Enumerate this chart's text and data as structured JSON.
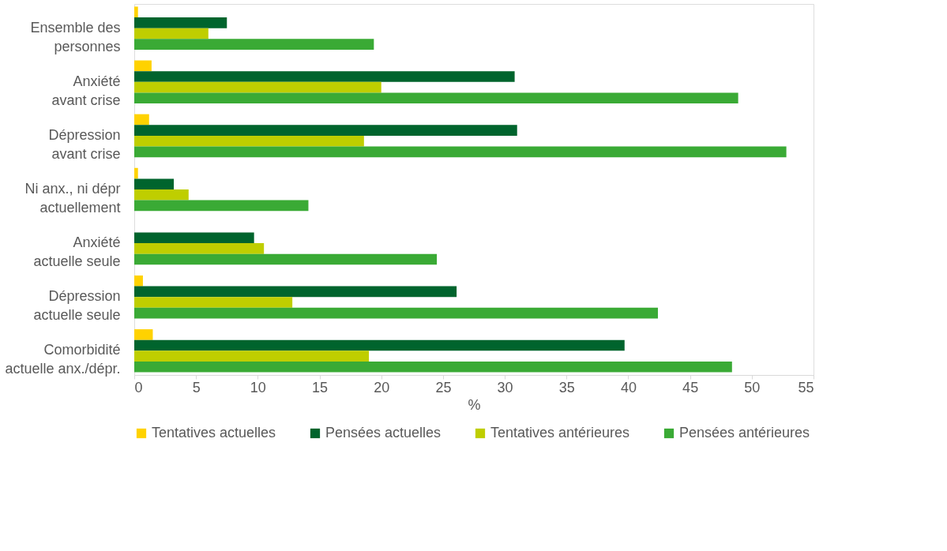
{
  "chart_data": {
    "type": "bar",
    "orientation": "horizontal",
    "xlabel": "%",
    "categories": [
      "Ensemble des\npersonnes",
      "Anxiété\navant crise",
      "Dépression\navant crise",
      "Ni anx., ni dépr\nactuellement",
      "Anxiété\nactuelle seule",
      "Dépression\nactuelle seule",
      "Comorbidité\nactuelle anx./dépr."
    ],
    "series": [
      {
        "name": "Tentatives actuelles",
        "color": "#ffd200",
        "values": [
          0.3,
          1.4,
          1.2,
          0.3,
          null,
          0.7,
          1.5
        ]
      },
      {
        "name": "Pensées actuelles",
        "color": "#00642d",
        "values": [
          7.5,
          30.8,
          31.0,
          3.2,
          9.7,
          26.1,
          39.7
        ]
      },
      {
        "name": "Tentatives antérieures",
        "color": "#bfce00",
        "values": [
          6.0,
          20.0,
          18.6,
          4.4,
          10.5,
          12.8,
          19.0
        ]
      },
      {
        "name": "Pensées antérieures",
        "color": "#3aaa35",
        "values": [
          19.4,
          48.9,
          52.8,
          14.1,
          24.5,
          42.4,
          48.4
        ]
      }
    ],
    "xlim": [
      0,
      55
    ],
    "xticks": [
      0,
      5,
      10,
      15,
      20,
      25,
      30,
      35,
      40,
      45,
      50,
      55
    ],
    "grid": false,
    "legend": "bottom"
  }
}
